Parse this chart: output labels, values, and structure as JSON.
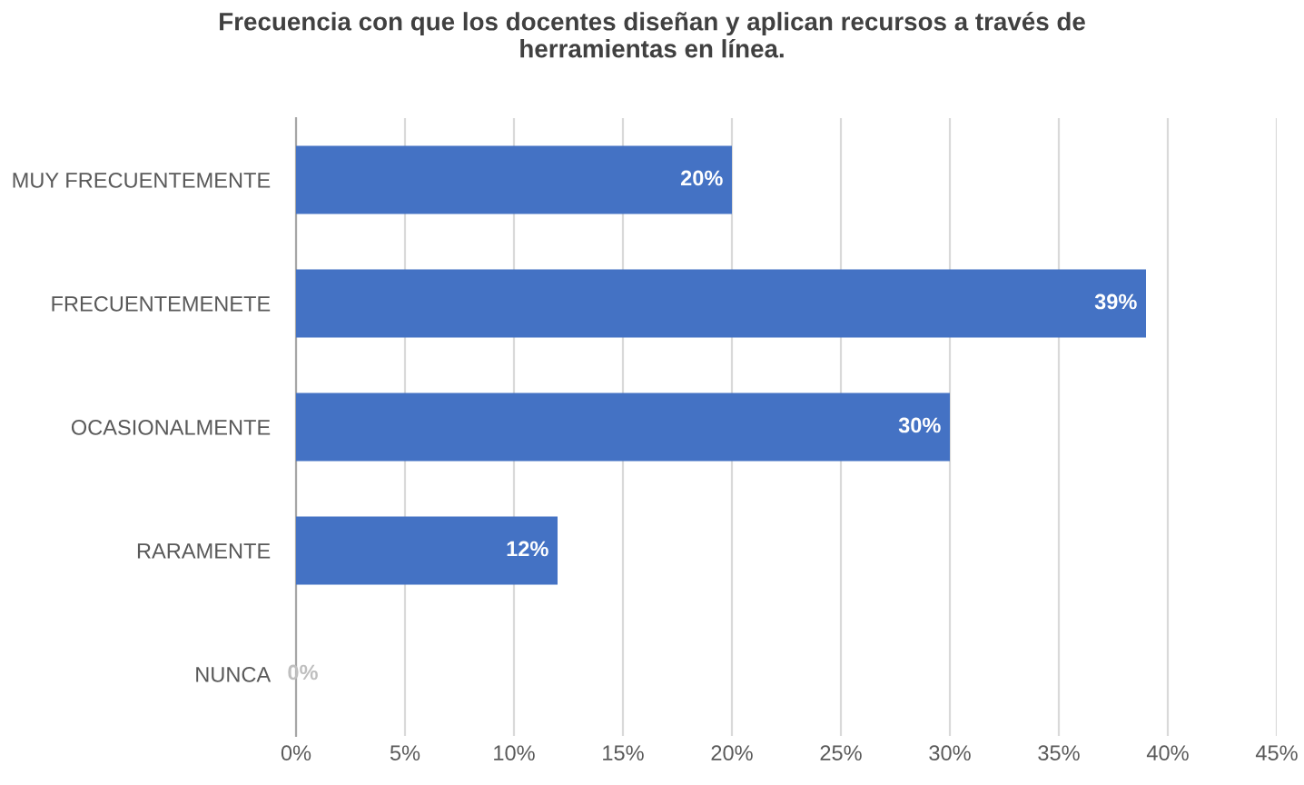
{
  "chart_data": {
    "type": "bar",
    "orientation": "horizontal",
    "title": "Frecuencia con que los docentes diseñan y aplican recursos a través de\nherramientas en línea.",
    "categories": [
      "MUY FRECUENTEMENTE",
      "FRECUENTEMENETE",
      "OCASIONALMENTE",
      "RARAMENTE",
      "NUNCA"
    ],
    "values": [
      20,
      39,
      30,
      12,
      0
    ],
    "value_labels": [
      "20%",
      "39%",
      "30%",
      "12%",
      "0%"
    ],
    "color": "#4472c4",
    "xlim": [
      0,
      45
    ],
    "xticks": [
      {
        "value": 0,
        "label": "0%"
      },
      {
        "value": 5,
        "label": "5%"
      },
      {
        "value": 10,
        "label": "10%"
      },
      {
        "value": 15,
        "label": "15%"
      },
      {
        "value": 20,
        "label": "20%"
      },
      {
        "value": 25,
        "label": "25%"
      },
      {
        "value": 30,
        "label": "30%"
      },
      {
        "value": 35,
        "label": "35%"
      },
      {
        "value": 40,
        "label": "40%"
      },
      {
        "value": 45,
        "label": "45%"
      }
    ],
    "grid": "x"
  }
}
